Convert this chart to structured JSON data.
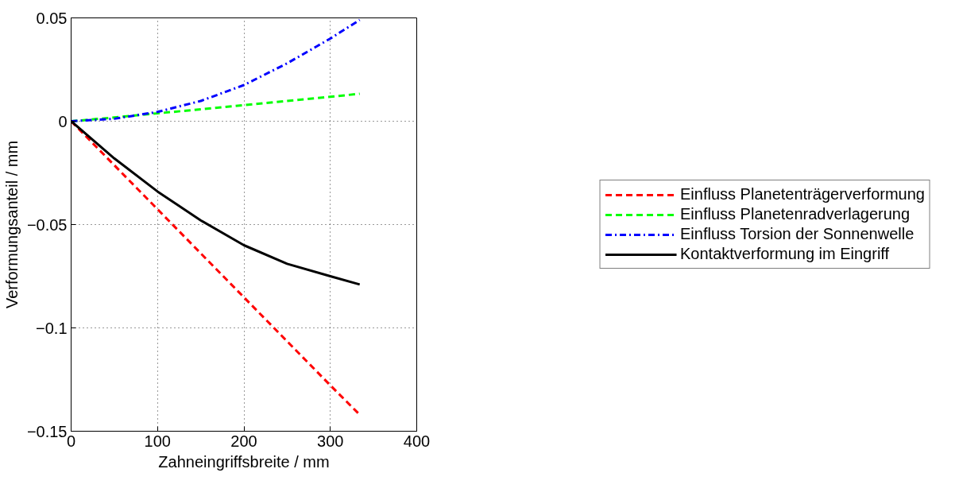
{
  "chart_data": {
    "type": "line",
    "xlabel": "Zahneingriffsbreite / mm",
    "ylabel": "Verformungsanteil / mm",
    "x": [
      0,
      50,
      100,
      150,
      200,
      250,
      300,
      334
    ],
    "series": [
      {
        "name": "Einfluss Planetenträgerverformung",
        "color": "#ff0000",
        "line_style": "dashed",
        "values": [
          0,
          -0.0213,
          -0.0426,
          -0.0639,
          -0.0852,
          -0.1065,
          -0.1278,
          -0.142
        ]
      },
      {
        "name": "Einfluss Planetenradverlagerung",
        "color": "#00ff00",
        "line_style": "dashed",
        "values": [
          0,
          0.0018,
          0.0038,
          0.0058,
          0.0078,
          0.0098,
          0.0118,
          0.0133
        ]
      },
      {
        "name": "Einfluss Torsion der Sonnenwelle",
        "color": "#0000ff",
        "line_style": "dashdot",
        "values": [
          0,
          0.0012,
          0.0045,
          0.0098,
          0.0175,
          0.028,
          0.04,
          0.049
        ]
      },
      {
        "name": "Kontaktverformung im Eingriff",
        "color": "#000000",
        "line_style": "solid",
        "values": [
          0,
          -0.018,
          -0.034,
          -0.048,
          -0.06,
          -0.069,
          -0.075,
          -0.079
        ]
      }
    ],
    "xlim": [
      0,
      400
    ],
    "xticks": [
      0,
      100,
      200,
      300,
      400
    ],
    "ylim": [
      -0.15,
      0.05
    ],
    "yticks": [
      {
        "value": -0.15,
        "label": "−0.15"
      },
      {
        "value": -0.1,
        "label": "−0.1"
      },
      {
        "value": -0.05,
        "label": "−0.05"
      },
      0,
      0.05
    ],
    "grid": true,
    "legend": "right"
  }
}
